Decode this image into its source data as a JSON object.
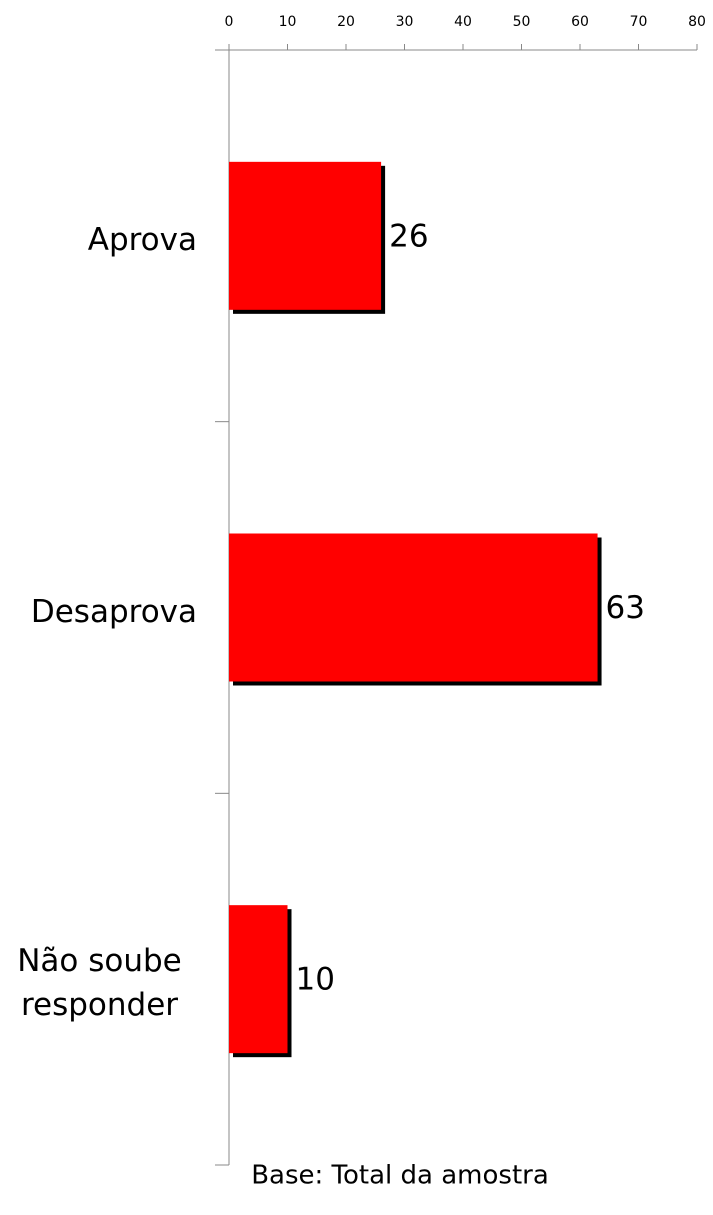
{
  "chart_data": {
    "type": "bar",
    "orientation": "horizontal",
    "categories": [
      "Aprova",
      "Desaprova",
      "Não soube responder"
    ],
    "values": [
      26,
      63,
      10
    ],
    "color": "#ff0000",
    "shadow": true,
    "xlim": [
      0,
      80
    ],
    "xticks": [
      0,
      10,
      20,
      30,
      40,
      50,
      60,
      70,
      80
    ],
    "footnote": "Base: Total da amostra"
  }
}
